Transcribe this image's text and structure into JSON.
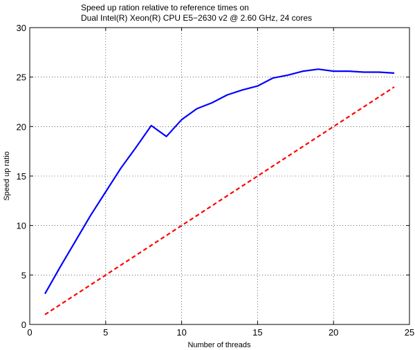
{
  "chart_data": {
    "type": "line",
    "title": [
      "Speed up ration relative to reference times on",
      "Dual Intel(R) Xeon(R) CPU E5−2630 v2 @ 2.60 GHz, 24 cores"
    ],
    "xlabel": "Number of threads",
    "ylabel": "Speed up ratio",
    "xlim": [
      0,
      25
    ],
    "ylim": [
      0,
      30
    ],
    "xticks": [
      0,
      5,
      10,
      15,
      20,
      25
    ],
    "yticks": [
      0,
      5,
      10,
      15,
      20,
      25,
      30
    ],
    "grid": true,
    "series": [
      {
        "color": "#0000ff",
        "style": "solid",
        "x": [
          1,
          2,
          3,
          4,
          5,
          6,
          7,
          8,
          9,
          10,
          11,
          12,
          13,
          14,
          15,
          16,
          17,
          18,
          19,
          20,
          21,
          22,
          23,
          24
        ],
        "y": [
          3.1,
          5.8,
          8.4,
          11.0,
          13.4,
          15.8,
          17.9,
          20.1,
          19.0,
          20.7,
          21.8,
          22.4,
          23.2,
          23.7,
          24.1,
          24.9,
          25.2,
          25.6,
          25.8,
          25.6,
          25.6,
          25.5,
          25.5,
          25.4
        ]
      },
      {
        "color": "#ff0000",
        "style": "dashed",
        "x": [
          1,
          24
        ],
        "y": [
          1,
          24
        ]
      }
    ]
  }
}
